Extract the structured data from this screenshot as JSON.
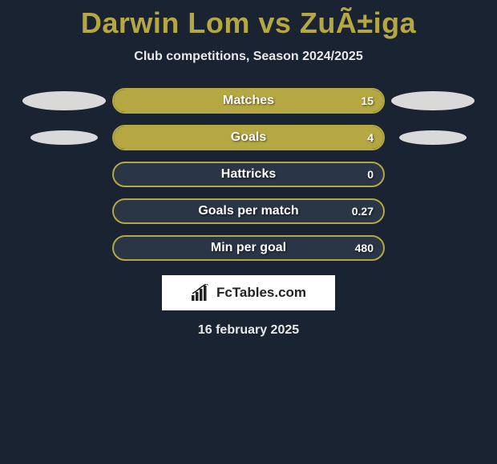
{
  "header": {
    "title": "Darwin Lom vs ZuÃ±iga",
    "subtitle": "Club competitions, Season 2024/2025"
  },
  "chart": {
    "type": "bar",
    "bar_background": "#2a3545",
    "bar_fill_color": "#b5a742",
    "bar_border_color": "#b5a742",
    "text_color": "#ffffff",
    "rows": [
      {
        "label": "Matches",
        "value": "15",
        "fill_pct": 100,
        "left_ellipse": true,
        "right_ellipse": true,
        "ellipse_size": "large"
      },
      {
        "label": "Goals",
        "value": "4",
        "fill_pct": 100,
        "left_ellipse": true,
        "right_ellipse": true,
        "ellipse_size": "small"
      },
      {
        "label": "Hattricks",
        "value": "0",
        "fill_pct": 0,
        "left_ellipse": false,
        "right_ellipse": false
      },
      {
        "label": "Goals per match",
        "value": "0.27",
        "fill_pct": 0,
        "left_ellipse": false,
        "right_ellipse": false
      },
      {
        "label": "Min per goal",
        "value": "480",
        "fill_pct": 0,
        "left_ellipse": false,
        "right_ellipse": false
      }
    ]
  },
  "branding": {
    "logo_text": "FcTables.com"
  },
  "footer": {
    "date": "16 february 2025"
  },
  "colors": {
    "page_bg": "#1a2332",
    "accent": "#b5a742",
    "text_light": "#e8e8e8",
    "ellipse": "#d9d9d9"
  }
}
